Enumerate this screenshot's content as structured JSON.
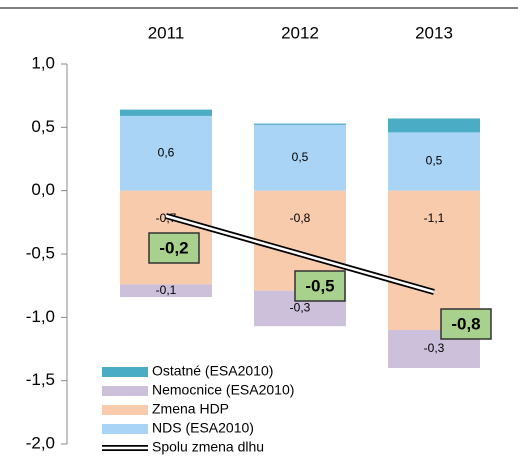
{
  "chart_data": {
    "type": "bar",
    "categories": [
      "2011",
      "2012",
      "2013"
    ],
    "ylim": [
      -2.0,
      1.0
    ],
    "yticks": [
      {
        "value": 1.0,
        "label": "1,0"
      },
      {
        "value": 0.5,
        "label": "0,5"
      },
      {
        "value": 0.0,
        "label": "0,0"
      },
      {
        "value": -0.5,
        "label": "-0,5"
      },
      {
        "value": -1.0,
        "label": "-1,0"
      },
      {
        "value": -1.5,
        "label": "-1,5"
      },
      {
        "value": -2.0,
        "label": "-2,0"
      }
    ],
    "stacked": true,
    "series": [
      {
        "name": "NDS (ESA2010)",
        "color": "#a9d4f5",
        "values": [
          0.59,
          0.52,
          0.46
        ],
        "value_labels": [
          "0,6",
          "0,5",
          "0,5"
        ]
      },
      {
        "name": "Zmena HDP",
        "color": "#f8cbad",
        "values": [
          -0.74,
          -0.79,
          -1.1
        ],
        "value_labels": [
          "-0,7",
          "-0,8",
          "-1,1"
        ]
      },
      {
        "name": "Nemocnice (ESA2010)",
        "color": "#ccc0da",
        "values": [
          -0.1,
          -0.28,
          -0.3
        ],
        "value_labels": [
          "-0,1",
          "-0,3",
          "-0,3"
        ]
      },
      {
        "name": "Ostatné (ESA2010)",
        "color": "#4bacc6",
        "values": [
          0.05,
          0.01,
          0.11
        ]
      },
      {
        "name": "Spolu zmena dlhu",
        "type": "line",
        "color": "#000000",
        "label_color": "#a9d18e",
        "values": [
          -0.2,
          -0.5,
          -0.8
        ],
        "value_labels": [
          "-0,2",
          "-0,5",
          "-0,8"
        ]
      }
    ]
  }
}
